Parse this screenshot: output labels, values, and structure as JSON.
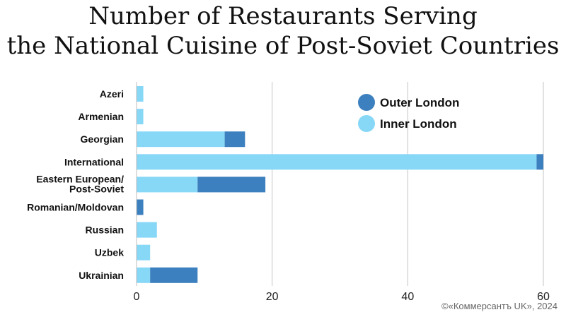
{
  "chart_data": {
    "type": "bar",
    "orientation": "horizontal",
    "stacked": true,
    "title_lines": [
      "Number of Restaurants Serving",
      "the National Cuisine of Post-Soviet Countries"
    ],
    "categories": [
      [
        "Azeri"
      ],
      [
        "Armenian"
      ],
      [
        "Georgian"
      ],
      [
        "International"
      ],
      [
        "Eastern European/",
        "Post-Soviet"
      ],
      [
        "Romanian/Moldovan"
      ],
      [
        "Russian"
      ],
      [
        "Uzbek"
      ],
      [
        "Ukrainian"
      ]
    ],
    "series": [
      {
        "name": "Inner London",
        "color": "#87d7f7",
        "values": [
          1,
          1,
          13,
          59,
          9,
          0,
          3,
          2,
          2
        ]
      },
      {
        "name": "Outer London",
        "color": "#3d80bf",
        "values": [
          0,
          0,
          3,
          1,
          10,
          1,
          0,
          0,
          7
        ]
      }
    ],
    "legend_order": [
      "Outer London",
      "Inner London"
    ],
    "legend_position": "top-right",
    "xlim": [
      0,
      60
    ],
    "xticks": [
      0,
      20,
      40,
      60
    ],
    "grid": true
  },
  "credit": "©«Коммерсантъ UK», 2024"
}
